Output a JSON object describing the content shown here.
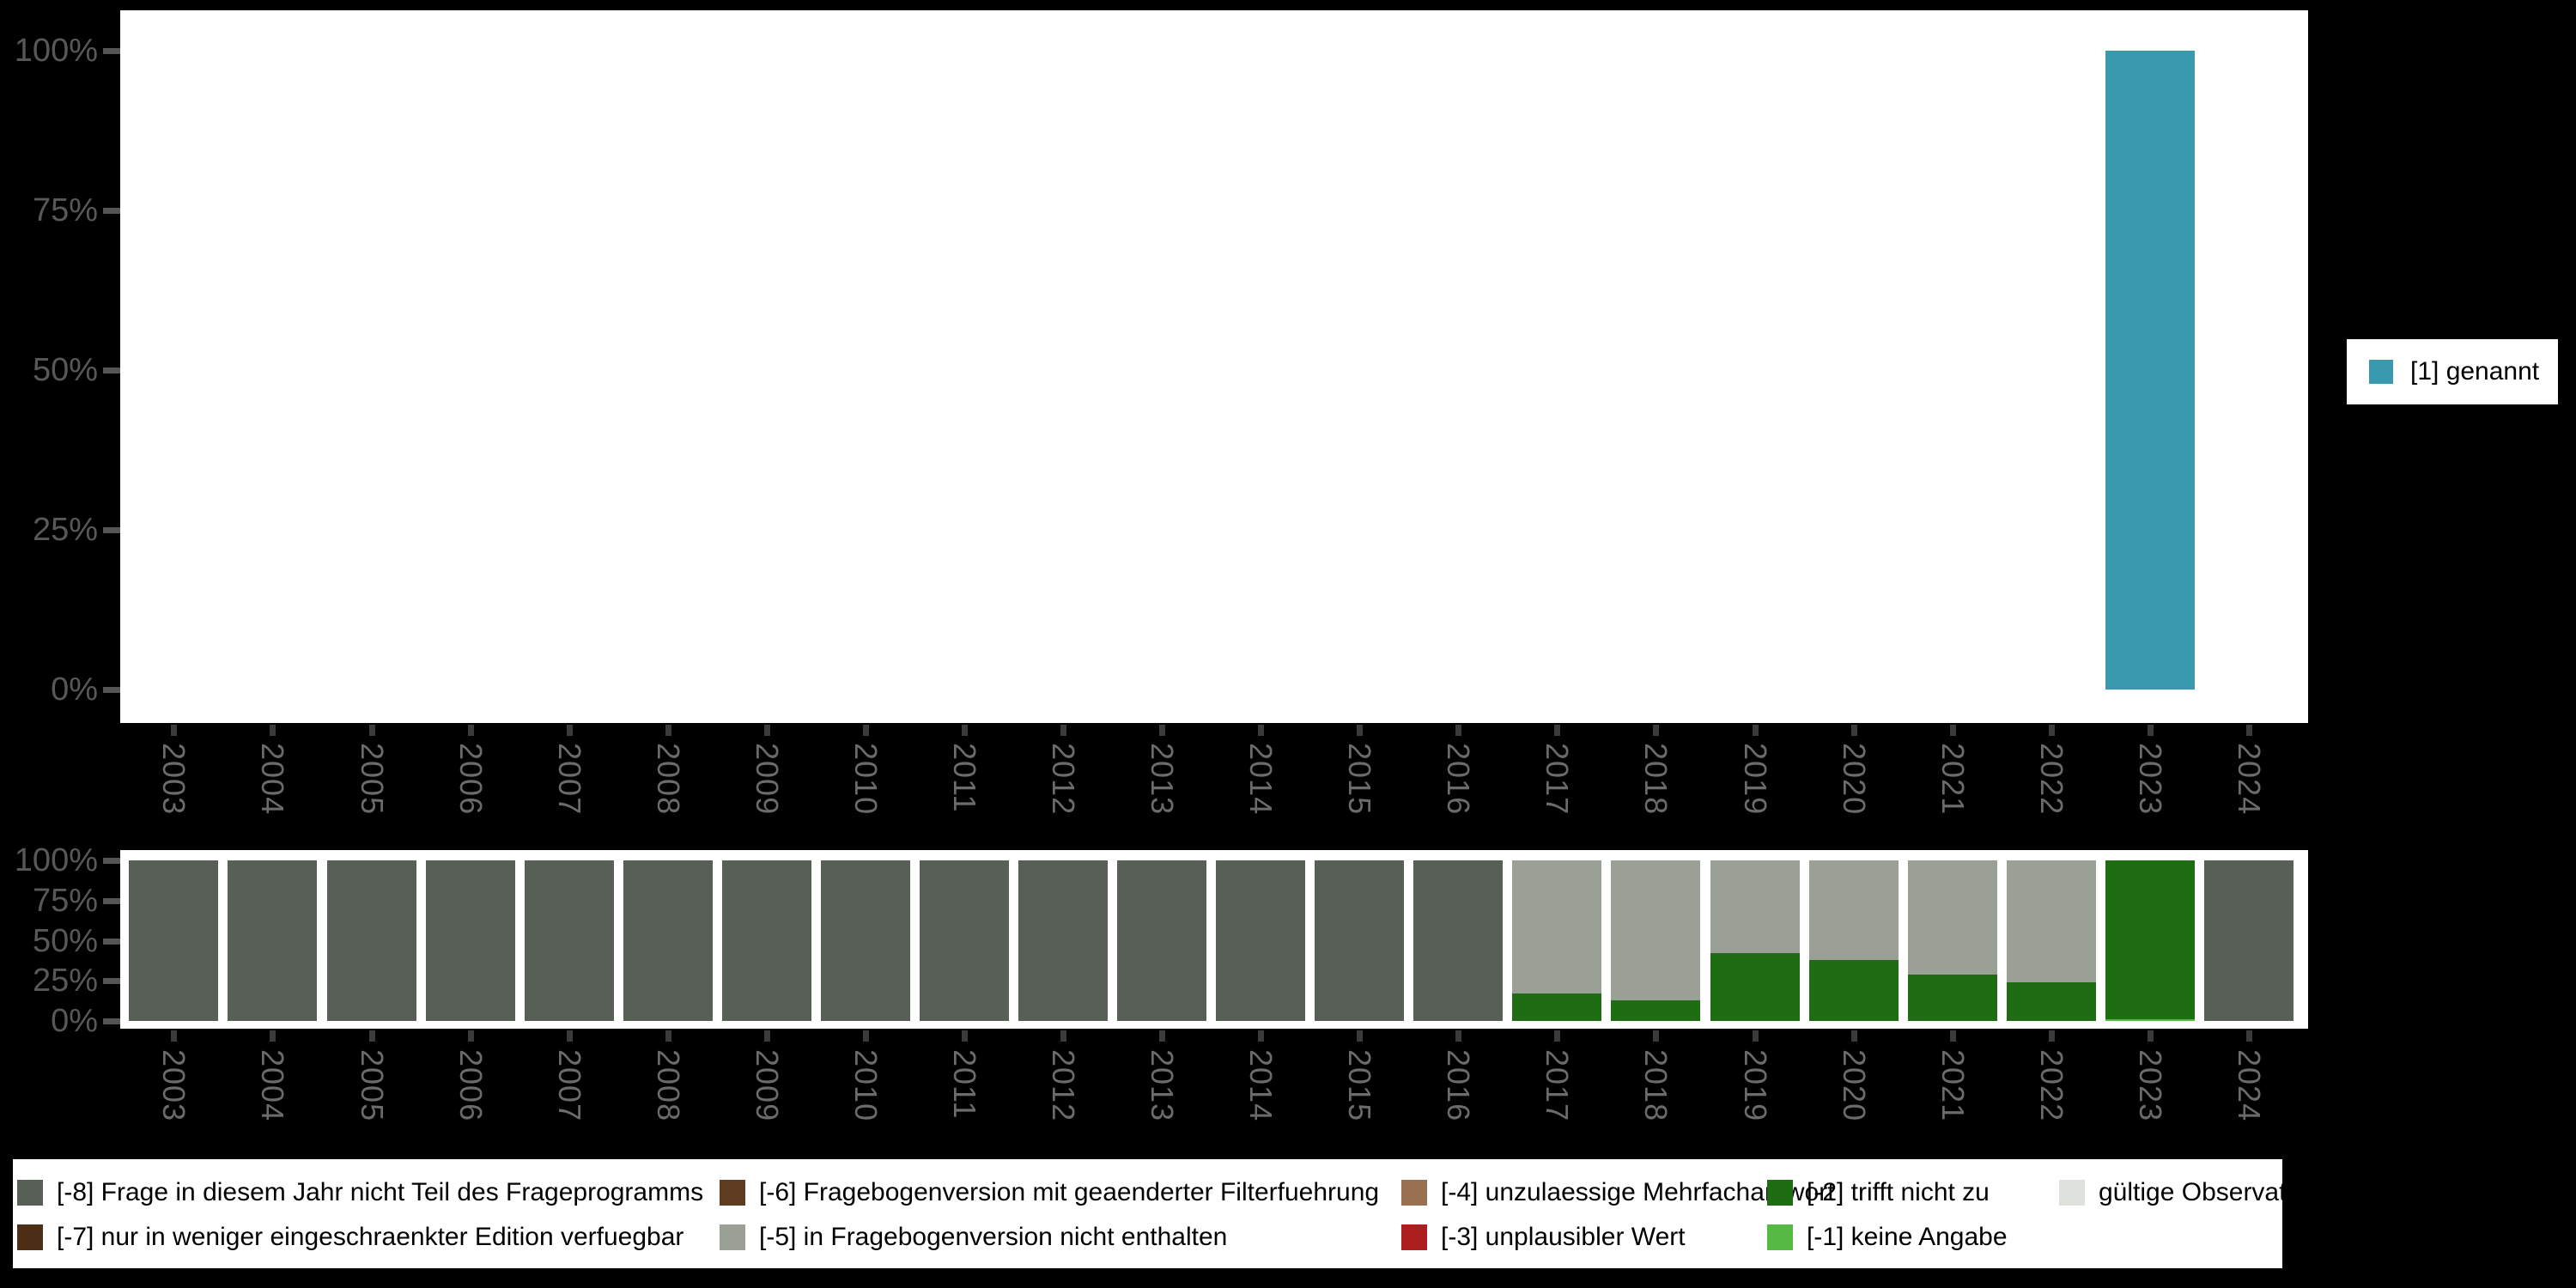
{
  "years": [
    "2003",
    "2004",
    "2005",
    "2006",
    "2007",
    "2008",
    "2009",
    "2010",
    "2011",
    "2012",
    "2013",
    "2014",
    "2015",
    "2016",
    "2017",
    "2018",
    "2019",
    "2020",
    "2021",
    "2022",
    "2023",
    "2024"
  ],
  "colors": {
    "background": "#000000",
    "plot_background": "#ffffff",
    "y_axis_text": "#585858",
    "x_axis_text": "#6b6b6b",
    "y_tick_mark": "#555555",
    "x_tick_mark": "#3b3b3b",
    "legend_text": "#000000",
    "codes": {
      "1": "#3999ae",
      "-8": "#575f56",
      "-7": "#4d2f17",
      "-6": "#5e3c1f",
      "-5": "#9aa096",
      "-4": "#997150",
      "-3": "#ab1f1f",
      "-2": "#1f6d13",
      "-1": "#55b944",
      "valid": "#dfe2dc"
    }
  },
  "top_legend": {
    "position": "right",
    "items": [
      {
        "code": "1",
        "label": "[1] genannt"
      }
    ]
  },
  "bottom_legend": {
    "position": "bottom",
    "columns": [
      [
        {
          "code": "-8",
          "label": "[-8] Frage in diesem Jahr nicht Teil des Frageprogramms"
        },
        {
          "code": "-7",
          "label": "[-7] nur in weniger eingeschraenkter Edition verfuegbar"
        }
      ],
      [
        {
          "code": "-6",
          "label": "[-6] Fragebogenversion mit geaenderter Filterfuehrung"
        },
        {
          "code": "-5",
          "label": "[-5] in Fragebogenversion nicht enthalten"
        }
      ],
      [
        {
          "code": "-4",
          "label": "[-4] unzulaessige Mehrfachantwort"
        },
        {
          "code": "-3",
          "label": "[-3] unplausibler Wert"
        }
      ],
      [
        {
          "code": "-2",
          "label": "[-2] trifft nicht zu"
        },
        {
          "code": "-1",
          "label": "[-1] keine Angabe"
        }
      ],
      [
        {
          "code": "valid",
          "label": "gültige Observationen"
        }
      ]
    ]
  },
  "chart_data": [
    {
      "type": "bar",
      "title": "",
      "xlabel": "",
      "ylabel": "",
      "ylim": [
        0,
        100
      ],
      "grid": false,
      "legend_position": "right",
      "categories": [
        "2003",
        "2004",
        "2005",
        "2006",
        "2007",
        "2008",
        "2009",
        "2010",
        "2011",
        "2012",
        "2013",
        "2014",
        "2015",
        "2016",
        "2017",
        "2018",
        "2019",
        "2020",
        "2021",
        "2022",
        "2023",
        "2024"
      ],
      "y_ticks": [
        {
          "label": "100%",
          "value": 100
        },
        {
          "label": "75%",
          "value": 75
        },
        {
          "label": "50%",
          "value": 50
        },
        {
          "label": "25%",
          "value": 25
        },
        {
          "label": "0%",
          "value": 0
        }
      ],
      "series": [
        {
          "name": "[1] genannt",
          "code": "1",
          "values": [
            0,
            0,
            0,
            0,
            0,
            0,
            0,
            0,
            0,
            0,
            0,
            0,
            0,
            0,
            0,
            0,
            0,
            0,
            0,
            0,
            100,
            0
          ]
        }
      ]
    },
    {
      "type": "stacked-bar",
      "title": "",
      "xlabel": "",
      "ylabel": "",
      "ylim": [
        0,
        100
      ],
      "grid": false,
      "legend_position": "bottom",
      "stack_order": "bottom-to-top",
      "categories": [
        "2003",
        "2004",
        "2005",
        "2006",
        "2007",
        "2008",
        "2009",
        "2010",
        "2011",
        "2012",
        "2013",
        "2014",
        "2015",
        "2016",
        "2017",
        "2018",
        "2019",
        "2020",
        "2021",
        "2022",
        "2023",
        "2024"
      ],
      "y_ticks": [
        {
          "label": "100%",
          "value": 100
        },
        {
          "label": "75%",
          "value": 75
        },
        {
          "label": "50%",
          "value": 50
        },
        {
          "label": "25%",
          "value": 25
        },
        {
          "label": "0%",
          "value": 0
        }
      ],
      "series": [
        {
          "name": "[-1] keine Angabe",
          "code": "-1",
          "values": [
            0,
            0,
            0,
            0,
            0,
            0,
            0,
            0,
            0,
            0,
            0,
            0,
            0,
            0,
            0,
            0,
            0,
            0,
            0,
            0,
            1,
            0
          ]
        },
        {
          "name": "[-2] trifft nicht zu",
          "code": "-2",
          "values": [
            0,
            0,
            0,
            0,
            0,
            0,
            0,
            0,
            0,
            0,
            0,
            0,
            0,
            0,
            17,
            13,
            42,
            38,
            29,
            24,
            99,
            0
          ]
        },
        {
          "name": "[-5] in Fragebogenversion nicht enthalten",
          "code": "-5",
          "values": [
            0,
            0,
            0,
            0,
            0,
            0,
            0,
            0,
            0,
            0,
            0,
            0,
            0,
            0,
            83,
            87,
            58,
            62,
            71,
            76,
            0,
            0
          ]
        },
        {
          "name": "[-8] Frage in diesem Jahr nicht Teil des Frageprogramms",
          "code": "-8",
          "values": [
            100,
            100,
            100,
            100,
            100,
            100,
            100,
            100,
            100,
            100,
            100,
            100,
            100,
            100,
            0,
            0,
            0,
            0,
            0,
            0,
            0,
            100
          ]
        }
      ]
    }
  ]
}
